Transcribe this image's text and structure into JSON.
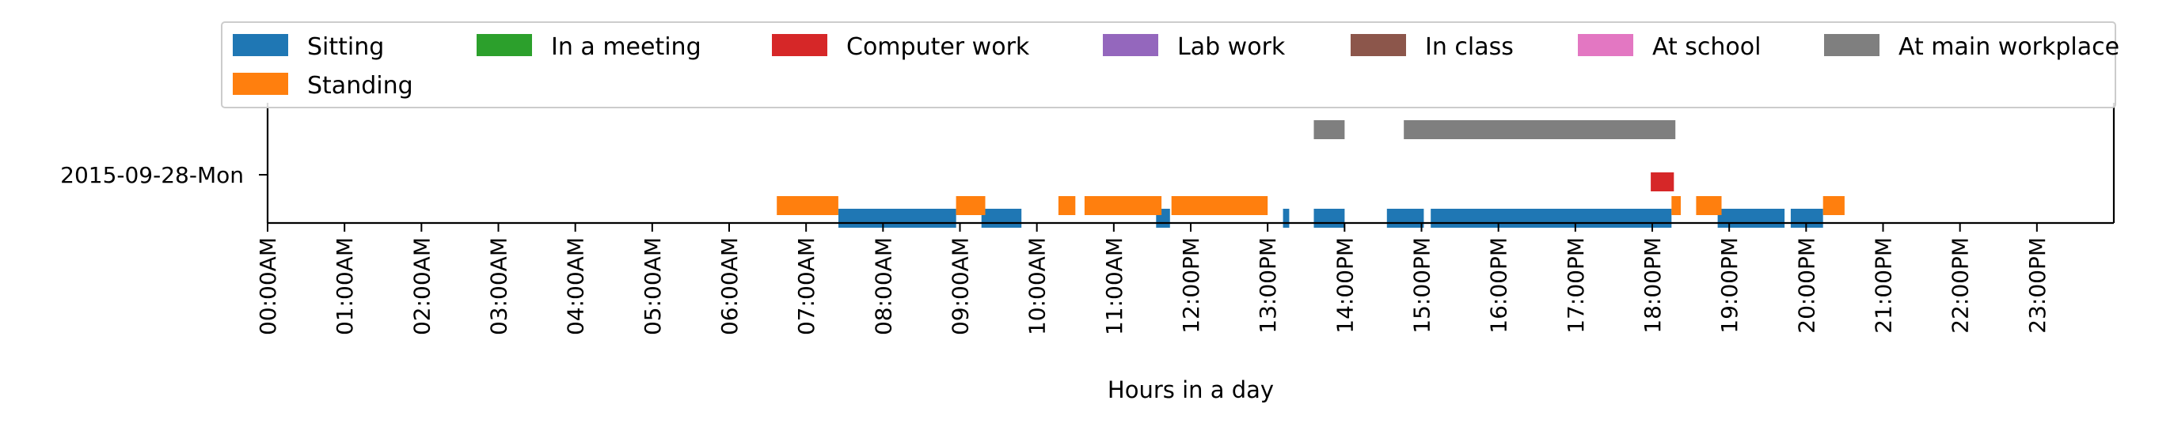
{
  "chart_data": {
    "type": "timeline",
    "title": "",
    "xlabel": "Hours in a day",
    "ylabel": "",
    "xlim": [
      0,
      24
    ],
    "day_label": "2015-09-28-Mon",
    "x_tick_labels": [
      "00:00AM",
      "01:00AM",
      "02:00AM",
      "03:00AM",
      "04:00AM",
      "05:00AM",
      "06:00AM",
      "07:00AM",
      "08:00AM",
      "09:00AM",
      "10:00AM",
      "11:00AM",
      "12:00PM",
      "13:00PM",
      "14:00PM",
      "15:00PM",
      "16:00PM",
      "17:00PM",
      "18:00PM",
      "19:00PM",
      "20:00PM",
      "21:00PM",
      "22:00PM",
      "23:00PM"
    ],
    "grid": false,
    "legend": {
      "placement": "top",
      "columns": 7
    },
    "series": [
      {
        "name": "Sitting",
        "color": "#1f77b4",
        "lane": 0,
        "intervals": [
          [
            7.42,
            8.95
          ],
          [
            9.28,
            9.8
          ],
          [
            11.55,
            11.73
          ],
          [
            13.2,
            13.28
          ],
          [
            13.6,
            14.0
          ],
          [
            14.55,
            15.03
          ],
          [
            15.12,
            18.25
          ]
        ]
      },
      {
        "name": "Standing",
        "color": "#ff7f0e",
        "lane": 1,
        "intervals": [
          [
            6.62,
            7.42
          ],
          [
            8.95,
            9.33
          ],
          [
            10.28,
            10.5
          ],
          [
            10.62,
            11.62
          ],
          [
            11.75,
            13.0
          ],
          [
            18.25,
            18.37
          ],
          [
            18.57,
            18.9
          ],
          [
            20.22,
            20.5
          ]
        ]
      },
      {
        "name": "In a meeting",
        "color": "#2ca02c",
        "lane": 2,
        "intervals": []
      },
      {
        "name": "Computer work",
        "color": "#d62728",
        "lane": 3,
        "intervals": [
          [
            17.98,
            18.28
          ]
        ]
      },
      {
        "name": "Lab work",
        "color": "#9467bd",
        "lane": 4,
        "intervals": []
      },
      {
        "name": "In class",
        "color": "#8c564b",
        "lane": 5,
        "intervals": []
      },
      {
        "name": "At school",
        "color": "#e377c2",
        "lane": 6,
        "intervals": []
      },
      {
        "name": "At main workplace",
        "color": "#7f7f7f",
        "lane": 7,
        "intervals": [
          [
            13.6,
            14.0
          ],
          [
            14.77,
            18.3
          ]
        ]
      }
    ],
    "extra_sitting_intervals": [
      [
        18.85,
        19.72
      ],
      [
        19.8,
        20.22
      ]
    ]
  }
}
